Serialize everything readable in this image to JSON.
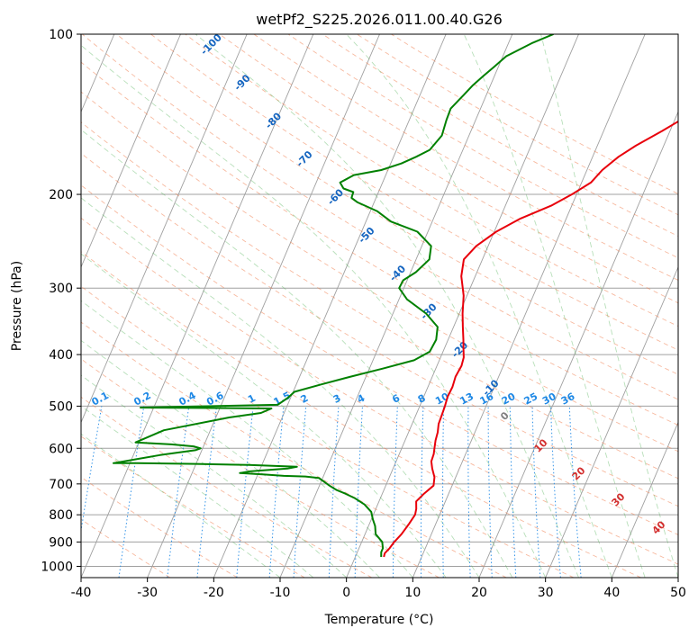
{
  "chart_data": {
    "type": "line",
    "title": "wetPf2_S225.2026.011.00.40.G26",
    "xlabel": "Temperature (°C)",
    "ylabel": "Pressure (hPa)",
    "xlim": [
      -40,
      50
    ],
    "ylim": [
      1050,
      100
    ],
    "y_scale": "log",
    "grid": true,
    "x_ticks": [
      -40,
      -30,
      -20,
      -10,
      0,
      10,
      20,
      30,
      40,
      50
    ],
    "y_ticks": [
      100,
      200,
      300,
      400,
      500,
      600,
      700,
      800,
      900,
      1000
    ],
    "series": [
      {
        "role": "temperature",
        "color": "#e8000b",
        "points": [
          [
            4.3,
            960
          ],
          [
            4.2,
            945
          ],
          [
            4.6,
            925
          ],
          [
            4.9,
            900
          ],
          [
            5.5,
            870
          ],
          [
            6.0,
            830
          ],
          [
            6.3,
            800
          ],
          [
            6.1,
            780
          ],
          [
            5.6,
            755
          ],
          [
            6.3,
            730
          ],
          [
            7.2,
            705
          ],
          [
            6.8,
            680
          ],
          [
            5.9,
            655
          ],
          [
            5.3,
            635
          ],
          [
            5.2,
            615
          ],
          [
            4.9,
            598
          ],
          [
            4.6,
            580
          ],
          [
            4.4,
            560
          ],
          [
            4.0,
            540
          ],
          [
            3.9,
            520
          ],
          [
            3.8,
            500
          ],
          [
            3.6,
            480
          ],
          [
            3.7,
            460
          ],
          [
            3.5,
            440
          ],
          [
            3.7,
            420
          ],
          [
            3.5,
            405
          ],
          [
            2.9,
            390
          ],
          [
            2.3,
            375
          ],
          [
            1.4,
            355
          ],
          [
            0.5,
            335
          ],
          [
            -0.5,
            310
          ],
          [
            -2.1,
            285
          ],
          [
            -2.8,
            265
          ],
          [
            -1.8,
            250
          ],
          [
            0.3,
            235
          ],
          [
            3.1,
            222
          ],
          [
            6.9,
            210
          ],
          [
            9.3,
            200
          ],
          [
            11.4,
            190
          ],
          [
            12.3,
            180
          ],
          [
            13.9,
            170
          ],
          [
            15.8,
            162
          ],
          [
            18.8,
            152
          ],
          [
            20.9,
            145
          ],
          [
            21.9,
            138
          ],
          [
            22.5,
            133
          ],
          [
            23.5,
            125
          ],
          [
            24.2,
            118
          ],
          [
            25.2,
            110
          ],
          [
            26.2,
            104
          ],
          [
            26.9,
            100
          ]
        ]
      },
      {
        "role": "dewpoint",
        "color": "#008000",
        "points": [
          [
            3.9,
            960
          ],
          [
            3.6,
            940
          ],
          [
            3.6,
            925
          ],
          [
            3.1,
            900
          ],
          [
            1.6,
            870
          ],
          [
            1.0,
            840
          ],
          [
            0.2,
            815
          ],
          [
            -0.5,
            790
          ],
          [
            -2.0,
            765
          ],
          [
            -3.8,
            745
          ],
          [
            -5.6,
            730
          ],
          [
            -7.2,
            718
          ],
          [
            -8.5,
            705
          ],
          [
            -9.4,
            695
          ],
          [
            -10.6,
            682
          ],
          [
            -12.7,
            678
          ],
          [
            -16.0,
            676
          ],
          [
            -19.0,
            672
          ],
          [
            -22.8,
            668
          ],
          [
            -21.4,
            663
          ],
          [
            -15.9,
            655
          ],
          [
            -14.6,
            650
          ],
          [
            -22.0,
            645
          ],
          [
            -30.0,
            642
          ],
          [
            -39.0,
            640
          ],
          [
            -42.5,
            640
          ],
          [
            -36.0,
            618
          ],
          [
            -31.0,
            605
          ],
          [
            -30.3,
            600
          ],
          [
            -31.5,
            595
          ],
          [
            -35.0,
            590
          ],
          [
            -40.5,
            585
          ],
          [
            -37.0,
            555
          ],
          [
            -28.0,
            525
          ],
          [
            -23.5,
            515
          ],
          [
            -22.2,
            505
          ],
          [
            -42.0,
            503
          ],
          [
            -21.5,
            497
          ],
          [
            -20.4,
            482
          ],
          [
            -19.8,
            470
          ],
          [
            -16.2,
            455
          ],
          [
            -12.3,
            440
          ],
          [
            -8.0,
            425
          ],
          [
            -3.8,
            410
          ],
          [
            -2.0,
            395
          ],
          [
            -1.8,
            375
          ],
          [
            -2.4,
            355
          ],
          [
            -5.0,
            335
          ],
          [
            -8.8,
            315
          ],
          [
            -10.7,
            300
          ],
          [
            -10.6,
            290
          ],
          [
            -9.2,
            280
          ],
          [
            -8.0,
            265
          ],
          [
            -8.6,
            250
          ],
          [
            -11.6,
            235
          ],
          [
            -16.2,
            225
          ],
          [
            -19.0,
            215
          ],
          [
            -22.5,
            207
          ],
          [
            -23.7,
            203
          ],
          [
            -23.8,
            198
          ],
          [
            -25.5,
            195
          ],
          [
            -26.4,
            190
          ],
          [
            -24.8,
            184
          ],
          [
            -21.0,
            180
          ],
          [
            -18.4,
            175
          ],
          [
            -16.6,
            170
          ],
          [
            -15.0,
            165
          ],
          [
            -14.1,
            155
          ],
          [
            -14.4,
            145
          ],
          [
            -14.5,
            138
          ],
          [
            -13.4,
            130
          ],
          [
            -12.7,
            125
          ],
          [
            -11.7,
            120
          ],
          [
            -10.6,
            115
          ],
          [
            -9.5,
            110
          ],
          [
            -6.5,
            104
          ],
          [
            -3.8,
            100
          ]
        ]
      }
    ],
    "dry_adiabat_labels": [
      "-100",
      "-90",
      "-80",
      "-70",
      "-60",
      "-50",
      "-40",
      "-30",
      "-20",
      "-10"
    ],
    "moist_adiabat_labels": [
      "0",
      "10",
      "20",
      "30",
      "40"
    ],
    "mixing_ratio_labels": [
      "0.1",
      "0.2",
      "0.4",
      "0.6",
      "1",
      "1.5",
      "2",
      "3",
      "4",
      "6",
      "8",
      "10",
      "13",
      "16",
      "20",
      "25",
      "30",
      "36"
    ]
  },
  "colors": {
    "temperature": "#e8000b",
    "dewpoint": "#008000",
    "dry_adiabat": "#f08050",
    "moist_adiabat": "#4caf50",
    "mixing_ratio": "#1e88e5",
    "dry_label": "#1565c0",
    "moist_label": "#d32f2f",
    "isotherm": "#a0a0a0"
  }
}
